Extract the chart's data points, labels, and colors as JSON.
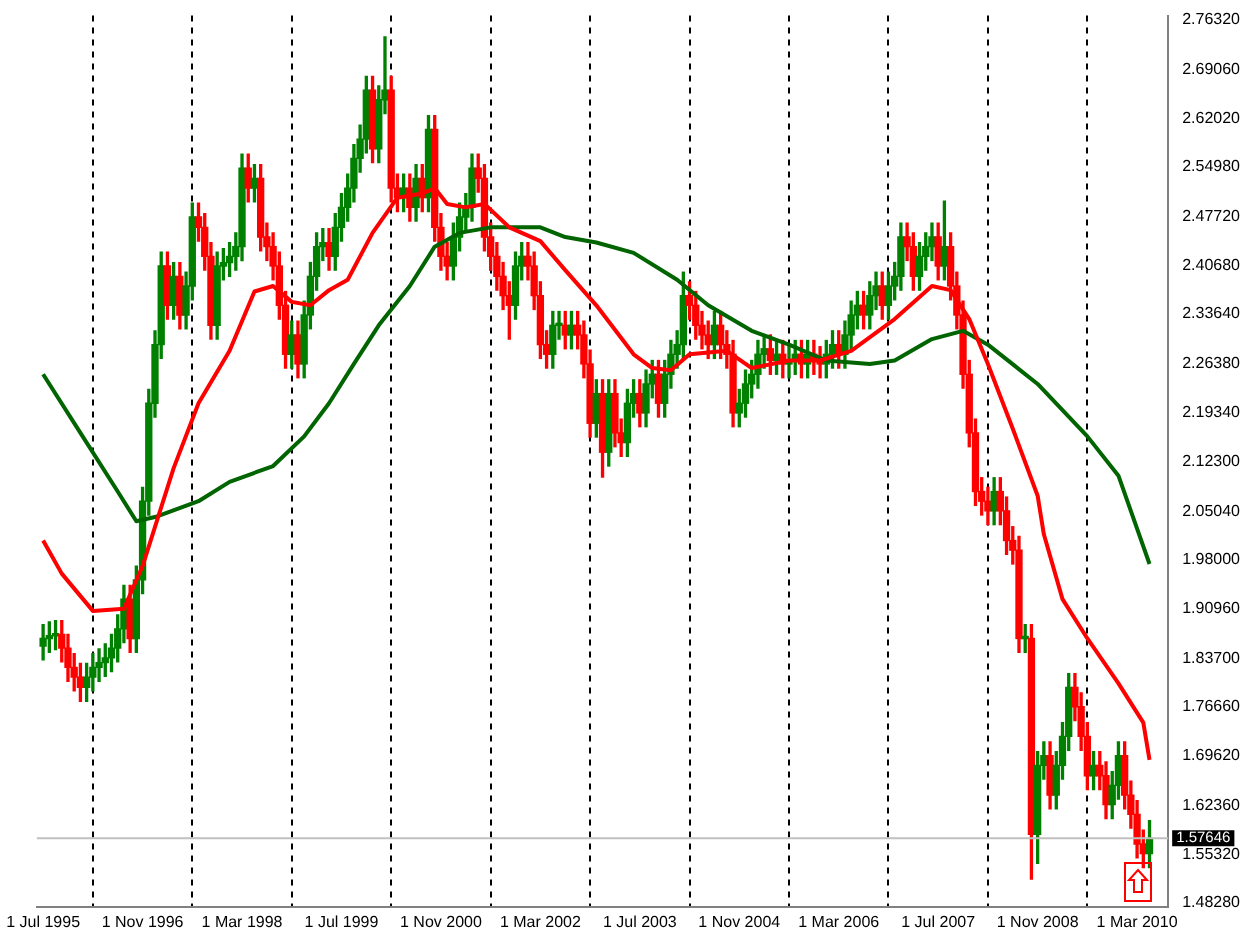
{
  "chart_data": {
    "type": "candlestick",
    "x": [
      "1995-07",
      "1995-08",
      "1995-09",
      "1995-10",
      "1995-11",
      "1995-12",
      "1996-01",
      "1996-02",
      "1996-03",
      "1996-04",
      "1996-05",
      "1996-06",
      "1996-07",
      "1996-08",
      "1996-09",
      "1996-10",
      "1996-11",
      "1996-12",
      "1997-01",
      "1997-02",
      "1997-03",
      "1997-04",
      "1997-05",
      "1997-06",
      "1997-07",
      "1997-08",
      "1997-09",
      "1997-10",
      "1997-11",
      "1997-12",
      "1998-01",
      "1998-02",
      "1998-03",
      "1998-04",
      "1998-05",
      "1998-06",
      "1998-07",
      "1998-08",
      "1998-09",
      "1998-10",
      "1998-11",
      "1998-12",
      "1999-01",
      "1999-02",
      "1999-03",
      "1999-04",
      "1999-05",
      "1999-06",
      "1999-07",
      "1999-08",
      "1999-09",
      "1999-10",
      "1999-11",
      "1999-12",
      "2000-01",
      "2000-02",
      "2000-03",
      "2000-04",
      "2000-05",
      "2000-06",
      "2000-07",
      "2000-08",
      "2000-09",
      "2000-10",
      "2000-11",
      "2000-12",
      "2001-01",
      "2001-02",
      "2001-03",
      "2001-04",
      "2001-05",
      "2001-06",
      "2001-07",
      "2001-08",
      "2001-09",
      "2001-10",
      "2001-11",
      "2001-12",
      "2002-01",
      "2002-02",
      "2002-03",
      "2002-04",
      "2002-05",
      "2002-06",
      "2002-07",
      "2002-08",
      "2002-09",
      "2002-10",
      "2002-11",
      "2002-12",
      "2003-01",
      "2003-02",
      "2003-03",
      "2003-04",
      "2003-05",
      "2003-06",
      "2003-07",
      "2003-08",
      "2003-09",
      "2003-10",
      "2003-11",
      "2003-12",
      "2004-01",
      "2004-02",
      "2004-03",
      "2004-04",
      "2004-05",
      "2004-06",
      "2004-07",
      "2004-08",
      "2004-09",
      "2004-10",
      "2004-11",
      "2004-12",
      "2005-01",
      "2005-02",
      "2005-03",
      "2005-04",
      "2005-05",
      "2005-06",
      "2005-07",
      "2005-08",
      "2005-09",
      "2005-10",
      "2005-11",
      "2005-12",
      "2006-01",
      "2006-02",
      "2006-03",
      "2006-04",
      "2006-05",
      "2006-06",
      "2006-07",
      "2006-08",
      "2006-09",
      "2006-10",
      "2006-11",
      "2006-12",
      "2007-01",
      "2007-02",
      "2007-03",
      "2007-04",
      "2007-05",
      "2007-06",
      "2007-07",
      "2007-08",
      "2007-09",
      "2007-10",
      "2007-11",
      "2007-12",
      "2008-01",
      "2008-02",
      "2008-03",
      "2008-04",
      "2008-05",
      "2008-06",
      "2008-07",
      "2008-08",
      "2008-09",
      "2008-10",
      "2008-11",
      "2008-12",
      "2009-01",
      "2009-02",
      "2009-03",
      "2009-04",
      "2009-05",
      "2009-06",
      "2009-07",
      "2009-08",
      "2009-09",
      "2009-10",
      "2009-11",
      "2009-12",
      "2010-01",
      "2010-02",
      "2010-03",
      "2010-04",
      "2010-05"
    ],
    "ohlc": [
      [
        1.855,
        1.886,
        1.835,
        1.866
      ],
      [
        1.866,
        1.89,
        1.846,
        1.87
      ],
      [
        1.87,
        1.892,
        1.85,
        1.872
      ],
      [
        1.872,
        1.892,
        1.832,
        1.852
      ],
      [
        1.852,
        1.872,
        1.804,
        1.824
      ],
      [
        1.824,
        1.844,
        1.79,
        1.81
      ],
      [
        1.81,
        1.83,
        1.775,
        1.795
      ],
      [
        1.795,
        1.83,
        1.775,
        1.81
      ],
      [
        1.81,
        1.844,
        1.79,
        1.824
      ],
      [
        1.824,
        1.851,
        1.804,
        1.831
      ],
      [
        1.831,
        1.858,
        1.811,
        1.838
      ],
      [
        1.838,
        1.872,
        1.818,
        1.852
      ],
      [
        1.852,
        1.9,
        1.832,
        1.88
      ],
      [
        1.88,
        1.943,
        1.86,
        1.923
      ],
      [
        1.923,
        1.943,
        1.846,
        1.866
      ],
      [
        1.866,
        1.971,
        1.846,
        1.951
      ],
      [
        1.951,
        2.085,
        1.931,
        2.065
      ],
      [
        2.065,
        2.227,
        2.045,
        2.207
      ],
      [
        2.207,
        2.312,
        2.187,
        2.292
      ],
      [
        2.292,
        2.426,
        2.272,
        2.406
      ],
      [
        2.406,
        2.426,
        2.329,
        2.349
      ],
      [
        2.349,
        2.411,
        2.329,
        2.391
      ],
      [
        2.391,
        2.411,
        2.315,
        2.335
      ],
      [
        2.335,
        2.397,
        2.315,
        2.377
      ],
      [
        2.377,
        2.497,
        2.357,
        2.477
      ],
      [
        2.477,
        2.497,
        2.442,
        2.462
      ],
      [
        2.462,
        2.482,
        2.4,
        2.42
      ],
      [
        2.42,
        2.44,
        2.3,
        2.32
      ],
      [
        2.32,
        2.426,
        2.3,
        2.406
      ],
      [
        2.406,
        2.431,
        2.386,
        2.411
      ],
      [
        2.411,
        2.44,
        2.391,
        2.42
      ],
      [
        2.42,
        2.454,
        2.4,
        2.434
      ],
      [
        2.434,
        2.568,
        2.414,
        2.548
      ],
      [
        2.548,
        2.568,
        2.499,
        2.519
      ],
      [
        2.519,
        2.553,
        2.499,
        2.533
      ],
      [
        2.533,
        2.553,
        2.428,
        2.448
      ],
      [
        2.448,
        2.468,
        2.414,
        2.434
      ],
      [
        2.434,
        2.454,
        2.386,
        2.406
      ],
      [
        2.406,
        2.426,
        2.329,
        2.349
      ],
      [
        2.349,
        2.369,
        2.258,
        2.278
      ],
      [
        2.278,
        2.326,
        2.258,
        2.306
      ],
      [
        2.306,
        2.326,
        2.244,
        2.264
      ],
      [
        2.264,
        2.355,
        2.244,
        2.335
      ],
      [
        2.335,
        2.411,
        2.315,
        2.391
      ],
      [
        2.391,
        2.454,
        2.371,
        2.434
      ],
      [
        2.434,
        2.46,
        2.414,
        2.44
      ],
      [
        2.44,
        2.46,
        2.4,
        2.42
      ],
      [
        2.42,
        2.482,
        2.4,
        2.462
      ],
      [
        2.462,
        2.511,
        2.442,
        2.491
      ],
      [
        2.491,
        2.539,
        2.471,
        2.519
      ],
      [
        2.519,
        2.582,
        2.499,
        2.562
      ],
      [
        2.562,
        2.61,
        2.542,
        2.59
      ],
      [
        2.59,
        2.681,
        2.57,
        2.661
      ],
      [
        2.661,
        2.681,
        2.556,
        2.576
      ],
      [
        2.576,
        2.667,
        2.556,
        2.647
      ],
      [
        2.647,
        2.738,
        2.627,
        2.661
      ],
      [
        2.661,
        2.681,
        2.499,
        2.519
      ],
      [
        2.519,
        2.539,
        2.485,
        2.505
      ],
      [
        2.505,
        2.539,
        2.485,
        2.519
      ],
      [
        2.519,
        2.539,
        2.471,
        2.491
      ],
      [
        2.491,
        2.553,
        2.471,
        2.533
      ],
      [
        2.533,
        2.553,
        2.485,
        2.505
      ],
      [
        2.505,
        2.624,
        2.485,
        2.604
      ],
      [
        2.604,
        2.624,
        2.442,
        2.462
      ],
      [
        2.462,
        2.482,
        2.4,
        2.42
      ],
      [
        2.42,
        2.44,
        2.386,
        2.406
      ],
      [
        2.406,
        2.468,
        2.386,
        2.448
      ],
      [
        2.448,
        2.497,
        2.428,
        2.477
      ],
      [
        2.477,
        2.511,
        2.457,
        2.491
      ],
      [
        2.491,
        2.568,
        2.471,
        2.548
      ],
      [
        2.548,
        2.568,
        2.513,
        2.533
      ],
      [
        2.533,
        2.553,
        2.428,
        2.448
      ],
      [
        2.448,
        2.468,
        2.4,
        2.42
      ],
      [
        2.42,
        2.44,
        2.371,
        2.391
      ],
      [
        2.391,
        2.411,
        2.343,
        2.363
      ],
      [
        2.363,
        2.383,
        2.3,
        2.349
      ],
      [
        2.349,
        2.426,
        2.329,
        2.406
      ],
      [
        2.406,
        2.44,
        2.386,
        2.42
      ],
      [
        2.42,
        2.44,
        2.386,
        2.406
      ],
      [
        2.406,
        2.426,
        2.343,
        2.363
      ],
      [
        2.363,
        2.383,
        2.272,
        2.292
      ],
      [
        2.292,
        2.312,
        2.258,
        2.278
      ],
      [
        2.278,
        2.34,
        2.258,
        2.32
      ],
      [
        2.32,
        2.34,
        2.3,
        2.32
      ],
      [
        2.32,
        2.34,
        2.286,
        2.306
      ],
      [
        2.306,
        2.34,
        2.286,
        2.32
      ],
      [
        2.32,
        2.34,
        2.286,
        2.306
      ],
      [
        2.306,
        2.326,
        2.244,
        2.264
      ],
      [
        2.264,
        2.284,
        2.158,
        2.178
      ],
      [
        2.178,
        2.241,
        2.158,
        2.221
      ],
      [
        2.221,
        2.241,
        2.1,
        2.136
      ],
      [
        2.136,
        2.241,
        2.116,
        2.221
      ],
      [
        2.221,
        2.241,
        2.144,
        2.164
      ],
      [
        2.164,
        2.184,
        2.13,
        2.15
      ],
      [
        2.15,
        2.227,
        2.13,
        2.207
      ],
      [
        2.207,
        2.241,
        2.187,
        2.221
      ],
      [
        2.221,
        2.241,
        2.173,
        2.193
      ],
      [
        2.193,
        2.255,
        2.173,
        2.235
      ],
      [
        2.235,
        2.269,
        2.215,
        2.249
      ],
      [
        2.249,
        2.269,
        2.187,
        2.207
      ],
      [
        2.207,
        2.269,
        2.187,
        2.249
      ],
      [
        2.249,
        2.298,
        2.229,
        2.278
      ],
      [
        2.278,
        2.312,
        2.258,
        2.292
      ],
      [
        2.292,
        2.397,
        2.272,
        2.363
      ],
      [
        2.363,
        2.383,
        2.329,
        2.349
      ],
      [
        2.349,
        2.369,
        2.3,
        2.32
      ],
      [
        2.32,
        2.34,
        2.286,
        2.306
      ],
      [
        2.306,
        2.326,
        2.272,
        2.292
      ],
      [
        2.292,
        2.34,
        2.272,
        2.32
      ],
      [
        2.32,
        2.34,
        2.272,
        2.292
      ],
      [
        2.292,
        2.312,
        2.258,
        2.278
      ],
      [
        2.278,
        2.298,
        2.173,
        2.193
      ],
      [
        2.193,
        2.227,
        2.173,
        2.207
      ],
      [
        2.207,
        2.255,
        2.187,
        2.235
      ],
      [
        2.235,
        2.269,
        2.215,
        2.249
      ],
      [
        2.249,
        2.298,
        2.229,
        2.278
      ],
      [
        2.278,
        2.306,
        2.258,
        2.286
      ],
      [
        2.286,
        2.306,
        2.249,
        2.269
      ],
      [
        2.269,
        2.298,
        2.249,
        2.278
      ],
      [
        2.278,
        2.298,
        2.244,
        2.264
      ],
      [
        2.264,
        2.289,
        2.244,
        2.269
      ],
      [
        2.269,
        2.298,
        2.249,
        2.278
      ],
      [
        2.278,
        2.298,
        2.244,
        2.264
      ],
      [
        2.264,
        2.298,
        2.244,
        2.278
      ],
      [
        2.278,
        2.298,
        2.249,
        2.269
      ],
      [
        2.269,
        2.289,
        2.244,
        2.264
      ],
      [
        2.264,
        2.298,
        2.244,
        2.278
      ],
      [
        2.278,
        2.312,
        2.258,
        2.292
      ],
      [
        2.292,
        2.312,
        2.258,
        2.278
      ],
      [
        2.278,
        2.326,
        2.258,
        2.306
      ],
      [
        2.306,
        2.355,
        2.286,
        2.335
      ],
      [
        2.335,
        2.369,
        2.315,
        2.349
      ],
      [
        2.349,
        2.369,
        2.315,
        2.335
      ],
      [
        2.335,
        2.383,
        2.315,
        2.363
      ],
      [
        2.363,
        2.397,
        2.343,
        2.377
      ],
      [
        2.377,
        2.397,
        2.329,
        2.349
      ],
      [
        2.349,
        2.397,
        2.329,
        2.377
      ],
      [
        2.377,
        2.411,
        2.357,
        2.391
      ],
      [
        2.391,
        2.468,
        2.371,
        2.448
      ],
      [
        2.448,
        2.468,
        2.414,
        2.434
      ],
      [
        2.434,
        2.454,
        2.371,
        2.391
      ],
      [
        2.391,
        2.44,
        2.371,
        2.42
      ],
      [
        2.42,
        2.454,
        2.4,
        2.434
      ],
      [
        2.434,
        2.468,
        2.414,
        2.448
      ],
      [
        2.448,
        2.468,
        2.386,
        2.406
      ],
      [
        2.406,
        2.5,
        2.386,
        2.434
      ],
      [
        2.434,
        2.454,
        2.357,
        2.377
      ],
      [
        2.377,
        2.397,
        2.315,
        2.335
      ],
      [
        2.335,
        2.355,
        2.229,
        2.249
      ],
      [
        2.249,
        2.269,
        2.144,
        2.164
      ],
      [
        2.164,
        2.184,
        2.059,
        2.079
      ],
      [
        2.079,
        2.099,
        2.045,
        2.065
      ],
      [
        2.065,
        2.085,
        2.031,
        2.051
      ],
      [
        2.051,
        2.099,
        2.031,
        2.079
      ],
      [
        2.079,
        2.099,
        2.031,
        2.051
      ],
      [
        2.051,
        2.071,
        1.988,
        2.008
      ],
      [
        2.008,
        2.028,
        1.974,
        1.994
      ],
      [
        1.994,
        2.014,
        1.846,
        1.866
      ],
      [
        1.866,
        1.886,
        1.846,
        1.866
      ],
      [
        1.866,
        1.886,
        1.517,
        1.582
      ],
      [
        1.582,
        1.702,
        1.54,
        1.682
      ],
      [
        1.682,
        1.716,
        1.662,
        1.696
      ],
      [
        1.696,
        1.716,
        1.619,
        1.639
      ],
      [
        1.639,
        1.702,
        1.619,
        1.682
      ],
      [
        1.682,
        1.744,
        1.662,
        1.724
      ],
      [
        1.724,
        1.815,
        1.704,
        1.795
      ],
      [
        1.795,
        1.815,
        1.747,
        1.767
      ],
      [
        1.767,
        1.787,
        1.704,
        1.724
      ],
      [
        1.724,
        1.744,
        1.647,
        1.667
      ],
      [
        1.667,
        1.702,
        1.647,
        1.682
      ],
      [
        1.682,
        1.702,
        1.647,
        1.667
      ],
      [
        1.667,
        1.687,
        1.605,
        1.625
      ],
      [
        1.625,
        1.673,
        1.605,
        1.653
      ],
      [
        1.653,
        1.716,
        1.633,
        1.696
      ],
      [
        1.696,
        1.716,
        1.619,
        1.639
      ],
      [
        1.639,
        1.659,
        1.591,
        1.611
      ],
      [
        1.611,
        1.631,
        1.548,
        1.568
      ],
      [
        1.568,
        1.588,
        1.534,
        1.554
      ],
      [
        1.554,
        1.602,
        1.534,
        1.576
      ]
    ],
    "series": [
      {
        "type": "line",
        "color": "#ff0000",
        "x": [
          "1995-07",
          "1995-10",
          "1996-03",
          "1996-08",
          "1996-11",
          "1997-04",
          "1997-08",
          "1998-01",
          "1998-05",
          "1998-08",
          "1998-11",
          "1999-02",
          "1999-05",
          "1999-08",
          "1999-12",
          "2000-04",
          "2000-08",
          "2000-10",
          "2000-12",
          "2001-03",
          "2001-06",
          "2001-10",
          "2002-03",
          "2002-07",
          "2002-12",
          "2003-06",
          "2003-09",
          "2003-12",
          "2004-03",
          "2004-09",
          "2005-01",
          "2005-07",
          "2005-12",
          "2006-05",
          "2006-12",
          "2007-06",
          "2007-09",
          "2007-12",
          "2008-03",
          "2008-07",
          "2008-11",
          "2008-12",
          "2009-03",
          "2009-07",
          "2009-12",
          "2010-04",
          "2010-05"
        ],
        "values": [
          2.008,
          1.96,
          1.906,
          1.909,
          1.971,
          2.113,
          2.207,
          2.283,
          2.369,
          2.377,
          2.354,
          2.349,
          2.371,
          2.386,
          2.454,
          2.505,
          2.511,
          2.519,
          2.496,
          2.491,
          2.496,
          2.462,
          2.442,
          2.4,
          2.349,
          2.278,
          2.258,
          2.255,
          2.278,
          2.283,
          2.258,
          2.269,
          2.269,
          2.283,
          2.329,
          2.377,
          2.371,
          2.329,
          2.264,
          2.17,
          2.073,
          2.017,
          1.923,
          1.866,
          1.801,
          1.744,
          1.69
        ]
      },
      {
        "type": "line",
        "color": "#006400",
        "x": [
          "1995-07",
          "1996-01",
          "1996-07",
          "1996-10",
          "1997-01",
          "1997-08",
          "1998-01",
          "1998-08",
          "1999-01",
          "1999-05",
          "1999-09",
          "2000-01",
          "2000-06",
          "2000-10",
          "2001-02",
          "2001-07",
          "2002-03",
          "2002-07",
          "2002-12",
          "2003-06",
          "2004-01",
          "2004-06",
          "2005-01",
          "2005-07",
          "2006-01",
          "2006-08",
          "2006-12",
          "2007-06",
          "2007-11",
          "2008-03",
          "2008-11",
          "2009-07",
          "2009-12",
          "2010-05"
        ],
        "values": [
          2.249,
          2.164,
          2.079,
          2.036,
          2.042,
          2.065,
          2.093,
          2.116,
          2.159,
          2.207,
          2.264,
          2.32,
          2.377,
          2.434,
          2.454,
          2.462,
          2.462,
          2.448,
          2.44,
          2.425,
          2.386,
          2.349,
          2.312,
          2.292,
          2.269,
          2.264,
          2.269,
          2.3,
          2.312,
          2.292,
          2.235,
          2.159,
          2.102,
          1.974
        ]
      }
    ],
    "xlim": [
      "1995-06",
      "2010-08"
    ],
    "xticks": [
      {
        "value": "1995-07",
        "label": "1 Jul 1995"
      },
      {
        "value": "1996-11",
        "label": "1 Nov 1996"
      },
      {
        "value": "1998-03",
        "label": "1 Mar 1998"
      },
      {
        "value": "1999-07",
        "label": "1 Jul 1999"
      },
      {
        "value": "2000-11",
        "label": "1 Nov 2000"
      },
      {
        "value": "2002-03",
        "label": "1 Mar 2002"
      },
      {
        "value": "2003-07",
        "label": "1 Jul 2003"
      },
      {
        "value": "2004-11",
        "label": "1 Nov 2004"
      },
      {
        "value": "2006-03",
        "label": "1 Mar 2006"
      },
      {
        "value": "2007-07",
        "label": "1 Jul 2007"
      },
      {
        "value": "2008-11",
        "label": "1 Nov 2008"
      },
      {
        "value": "2010-03",
        "label": "1 Mar 2010"
      }
    ],
    "ylim": [
      1.477,
      2.769
    ],
    "yticks": [
      {
        "value": 1.4828,
        "label": "1.48280"
      },
      {
        "value": 1.5532,
        "label": "1.55320"
      },
      {
        "value": 1.6236,
        "label": "1.62360"
      },
      {
        "value": 1.6962,
        "label": "1.69620"
      },
      {
        "value": 1.7666,
        "label": "1.76660"
      },
      {
        "value": 1.837,
        "label": "1.83700"
      },
      {
        "value": 1.9096,
        "label": "1.90960"
      },
      {
        "value": 1.98,
        "label": "1.98000"
      },
      {
        "value": 2.0504,
        "label": "2.05040"
      },
      {
        "value": 2.123,
        "label": "2.12300"
      },
      {
        "value": 2.1934,
        "label": "2.19340"
      },
      {
        "value": 2.2638,
        "label": "2.26380"
      },
      {
        "value": 2.3364,
        "label": "2.33640"
      },
      {
        "value": 2.4068,
        "label": "2.40680"
      },
      {
        "value": 2.4772,
        "label": "2.47720"
      },
      {
        "value": 2.5498,
        "label": "2.54980"
      },
      {
        "value": 2.6202,
        "label": "2.62020"
      },
      {
        "value": 2.6906,
        "label": "2.69060"
      },
      {
        "value": 2.7632,
        "label": "2.76320"
      }
    ],
    "ref_lines": [
      {
        "axis": "y",
        "value": 1.57646,
        "label": "1.57646",
        "color": "#c0c0c0"
      }
    ],
    "grid": "x",
    "legend": false,
    "marker": "none"
  }
}
